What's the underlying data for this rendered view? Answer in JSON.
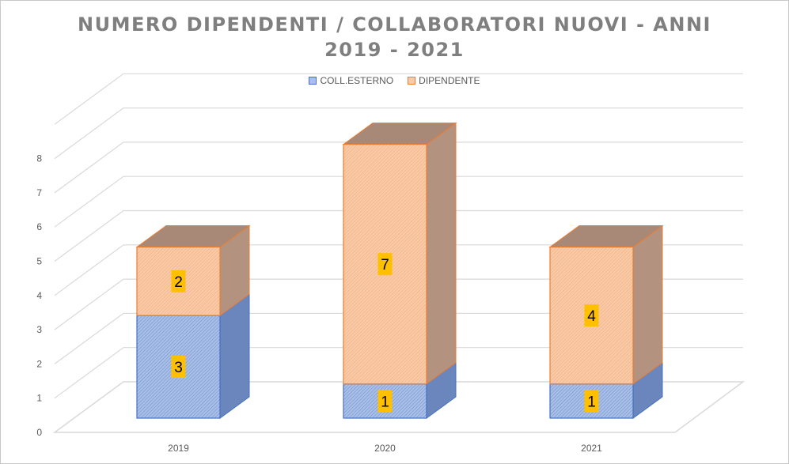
{
  "chart_data": {
    "type": "bar",
    "stacked": true,
    "title_lines": [
      "NUMERO DIPENDENTI / COLLABORATORI NUOVI - ANNI",
      "2019 - 2021"
    ],
    "categories": [
      "2019",
      "2020",
      "2021"
    ],
    "series": [
      {
        "name": "COLL.ESTERNO",
        "values": [
          3,
          1,
          1
        ]
      },
      {
        "name": "DIPENDENTE",
        "values": [
          2,
          7,
          4
        ]
      }
    ],
    "ylim": [
      0,
      8
    ],
    "yticks": [
      "0",
      "1",
      "2",
      "3",
      "4",
      "5",
      "6",
      "7",
      "8"
    ],
    "grid": true,
    "legend_position": "top",
    "colors": {
      "coll_front": "#a9bfe6",
      "coll_side": "#6a86bd",
      "coll_top": "#8aa6d8",
      "coll_edge": "#4472c4",
      "dip_front": "#f8cba8",
      "dip_side": "#b3927f",
      "dip_top": "#a88877",
      "dip_edge": "#ed7d31",
      "label_bg": "#ffc000",
      "grid": "#d9d9d9"
    }
  }
}
